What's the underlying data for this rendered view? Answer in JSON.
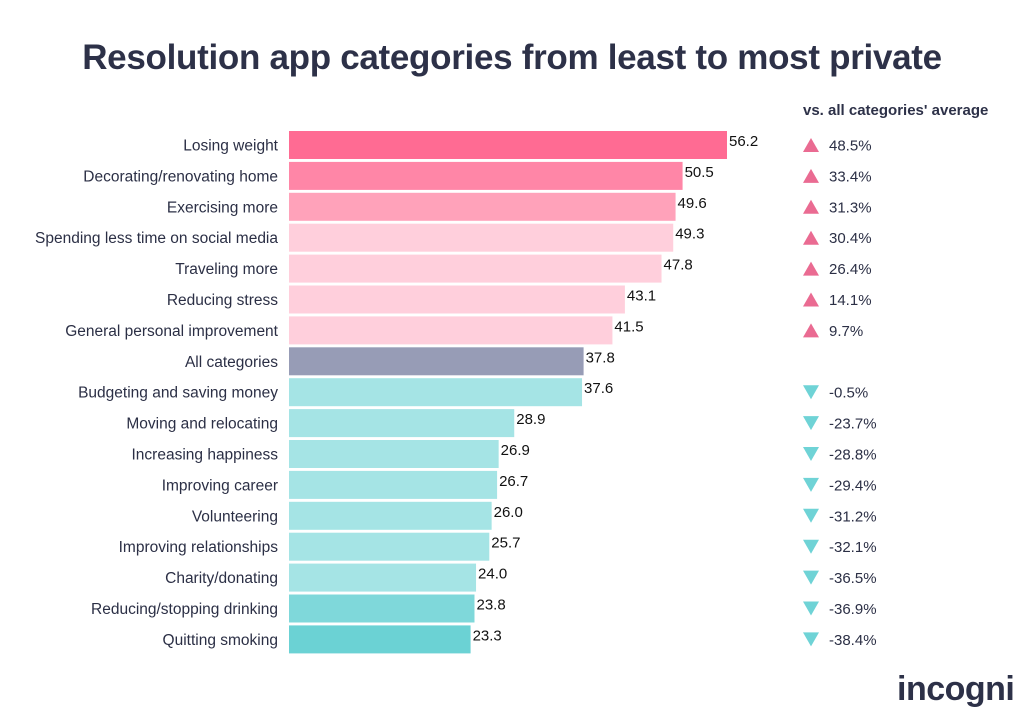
{
  "title": "Resolution app categories from least to most private",
  "comparison_header": "vs. all categories' average",
  "logo_text": "incogni",
  "colors": {
    "pink_strong": "#ff6b93",
    "pink_mid": "#ff86a7",
    "pink_soft": "#ffa2ba",
    "pink_pale": "#ffcfdc",
    "gray": "#979cb6",
    "teal_pale": "#a5e4e5",
    "teal_mid": "#7fd8da",
    "teal_strong": "#6bd2d4",
    "up_arrow": "#ea6b92",
    "down_arrow": "#6fd3d6"
  },
  "chart_data": {
    "type": "bar",
    "orientation": "horizontal",
    "title": "Resolution app categories from least to most private",
    "xlabel": "",
    "ylabel": "",
    "xlim": [
      0,
      56.2
    ],
    "categories": [
      "Losing weight",
      "Decorating/renovating home",
      "Exercising more",
      "Spending less time on social media",
      "Traveling more",
      "Reducing stress",
      "General personal improvement",
      "All categories",
      "Budgeting and saving money",
      "Moving and relocating",
      "Increasing happiness",
      "Improving career",
      "Volunteering",
      "Improving relationships",
      "Charity/donating",
      "Reducing/stopping drinking",
      "Quitting smoking"
    ],
    "values": [
      56.2,
      50.5,
      49.6,
      49.3,
      47.8,
      43.1,
      41.5,
      37.8,
      37.6,
      28.9,
      26.9,
      26.7,
      26.0,
      25.7,
      24.0,
      23.8,
      23.3
    ],
    "value_labels": [
      "56.2",
      "50.5",
      "49.6",
      "49.3",
      "47.8",
      "43.1",
      "41.5",
      "37.8",
      "37.6",
      "28.9",
      "26.9",
      "26.7",
      "26.0",
      "25.7",
      "24.0",
      "23.8",
      "23.3"
    ],
    "bar_colors": [
      "pink_strong",
      "pink_mid",
      "pink_soft",
      "pink_pale",
      "pink_pale",
      "pink_pale",
      "pink_pale",
      "gray",
      "teal_pale",
      "teal_pale",
      "teal_pale",
      "teal_pale",
      "teal_pale",
      "teal_pale",
      "teal_pale",
      "teal_mid",
      "teal_strong"
    ],
    "vs_average": [
      "48.5%",
      "33.4%",
      "31.3%",
      "30.4%",
      "26.4%",
      "14.1%",
      "9.7%",
      "",
      "-0.5%",
      "-23.7%",
      "-28.8%",
      "-29.4%",
      "-31.2%",
      "-32.1%",
      "-36.5%",
      "-36.9%",
      "-38.4%"
    ],
    "vs_average_direction": [
      "up",
      "up",
      "up",
      "up",
      "up",
      "up",
      "up",
      "",
      "down",
      "down",
      "down",
      "down",
      "down",
      "down",
      "down",
      "down",
      "down"
    ]
  }
}
